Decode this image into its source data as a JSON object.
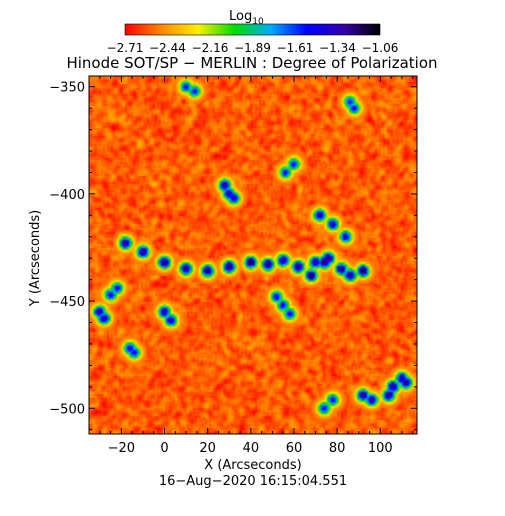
{
  "chart_data": {
    "type": "heatmap",
    "title": "Hinode SOT/SP − MERLIN : Degree of Polarization",
    "xlabel": "X (Arcseconds)",
    "ylabel": "Y (Arcseconds)",
    "footer": "16−Aug−2020 16:15:04.551",
    "colorbar": {
      "label_base": "Log",
      "label_sub": "10",
      "ticks": [
        "−2.71",
        "−2.44",
        "−2.16",
        "−1.89",
        "−1.61",
        "−1.34",
        "−1.06"
      ],
      "range": [
        -2.71,
        -1.06
      ],
      "colors": [
        "#ff0000",
        "#ff8800",
        "#ffee00",
        "#00dd00",
        "#00aaff",
        "#0000ff",
        "#3300aa",
        "#000000"
      ]
    },
    "xlim": [
      -35,
      117
    ],
    "ylim": [
      -512,
      -345
    ],
    "x_ticks": [
      -20,
      0,
      20,
      40,
      60,
      80,
      100
    ],
    "y_ticks": [
      -350,
      -400,
      -450,
      -500
    ],
    "x_ticklabels": [
      "−20",
      "0",
      "20",
      "40",
      "60",
      "80",
      "100"
    ],
    "y_ticklabels": [
      "−350",
      "−400",
      "−450",
      "−500"
    ],
    "background_level": -2.55,
    "features": [
      {
        "name": "lane",
        "x": [
          -18,
          -10,
          0,
          10,
          20,
          30,
          40,
          48,
          55,
          62,
          68,
          74
        ],
        "y": [
          -423,
          -427,
          -432,
          -435,
          -436,
          -434,
          -432,
          -433,
          -431,
          -434,
          -438,
          -432
        ],
        "value": -1.15
      },
      {
        "name": "cluster-a",
        "x": [
          70,
          76,
          82,
          86,
          92
        ],
        "y": [
          -432,
          -430,
          -435,
          -438,
          -436
        ],
        "value": -1.2
      },
      {
        "name": "cluster-b",
        "x": [
          72,
          78,
          84
        ],
        "y": [
          -410,
          -414,
          -420
        ],
        "value": -1.35
      },
      {
        "name": "cluster-c",
        "x": [
          28,
          30,
          32
        ],
        "y": [
          -396,
          -400,
          -402
        ],
        "value": -1.3
      },
      {
        "name": "cluster-d",
        "x": [
          104,
          106,
          110,
          112
        ],
        "y": [
          -494,
          -490,
          -486,
          -488
        ],
        "value": -1.2
      },
      {
        "name": "cluster-e",
        "x": [
          92,
          96
        ],
        "y": [
          -494,
          -496
        ],
        "value": -1.25
      },
      {
        "name": "cluster-f",
        "x": [
          -30,
          -28
        ],
        "y": [
          -455,
          -458
        ],
        "value": -1.3
      },
      {
        "name": "cluster-g",
        "x": [
          0,
          3
        ],
        "y": [
          -455,
          -459
        ],
        "value": -1.3
      },
      {
        "name": "cluster-h",
        "x": [
          52,
          55,
          58
        ],
        "y": [
          -448,
          -452,
          -456
        ],
        "value": -1.45
      },
      {
        "name": "cluster-i",
        "x": [
          56,
          60
        ],
        "y": [
          -390,
          -386
        ],
        "value": -1.5
      },
      {
        "name": "cluster-j",
        "x": [
          10,
          14
        ],
        "y": [
          -350,
          -352
        ],
        "value": -1.5
      },
      {
        "name": "cluster-k",
        "x": [
          -16,
          -14
        ],
        "y": [
          -472,
          -474
        ],
        "value": -1.4
      },
      {
        "name": "cluster-l",
        "x": [
          74,
          78
        ],
        "y": [
          -500,
          -496
        ],
        "value": -1.45
      },
      {
        "name": "cluster-m",
        "x": [
          86,
          88
        ],
        "y": [
          -357,
          -360
        ],
        "value": -1.5
      },
      {
        "name": "cluster-n",
        "x": [
          -25,
          -22
        ],
        "y": [
          -447,
          -444
        ],
        "value": -1.45
      }
    ],
    "colormap": "rainbow"
  }
}
